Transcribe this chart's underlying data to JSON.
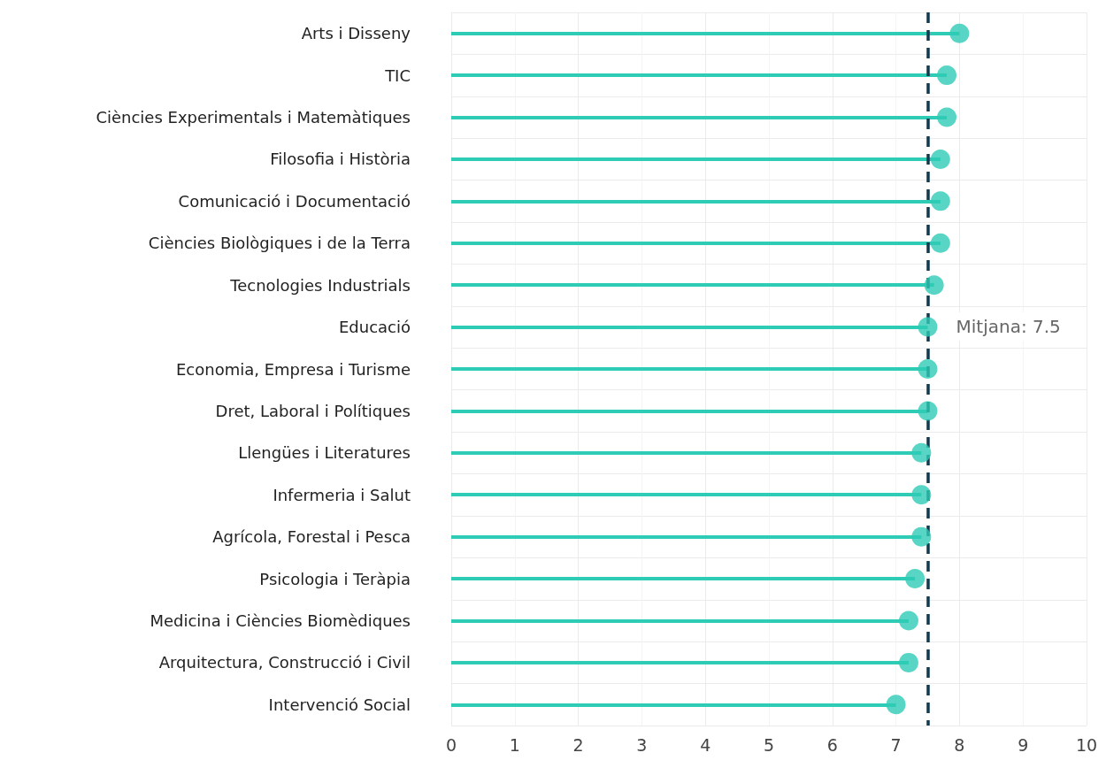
{
  "chart_data": {
    "type": "lollipop",
    "orientation": "horizontal",
    "categories": [
      "Arts i Disseny",
      "TIC",
      "Ciències Experimentals i Matemàtiques",
      "Filosofia i Història",
      "Comunicació i Documentació",
      "Ciències Biològiques i de la Terra",
      "Tecnologies Industrials",
      "Educació",
      "Economia, Empresa i Turisme",
      "Dret, Laboral i Polítiques",
      "Llengües i Literatures",
      "Infermeria i Salut",
      "Agrícola, Forestal i Pesca",
      "Psicologia i Teràpia",
      "Medicina i Ciències Biomèdiques",
      "Arquitectura, Construcció i Civil",
      "Intervenció Social"
    ],
    "values": [
      8.0,
      7.8,
      7.8,
      7.7,
      7.7,
      7.7,
      7.6,
      7.5,
      7.5,
      7.5,
      7.4,
      7.4,
      7.4,
      7.3,
      7.2,
      7.2,
      7.0
    ],
    "color": "#2ecbb5",
    "marker": "circle",
    "xlim": [
      0,
      10
    ],
    "xticks": [
      0,
      1,
      2,
      3,
      4,
      5,
      6,
      7,
      8,
      9,
      10
    ],
    "grid": true,
    "ref_lines": [
      {
        "axis": "x",
        "value": 7.5,
        "label": "Mitjana: 7.5",
        "color": "#123a4f",
        "line_style": "dashed"
      }
    ]
  }
}
